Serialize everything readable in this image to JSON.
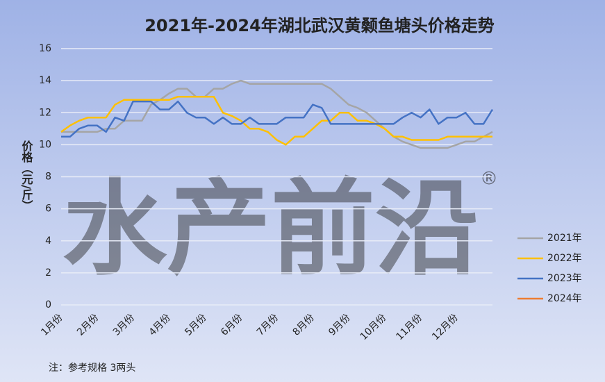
{
  "chart_data": {
    "type": "line",
    "title": "2021年-2024年湖北武汉黄颡鱼塘头价格走势",
    "y_label": "价格（元/斤）",
    "note": "注：参考规格  3两头",
    "watermark": "水产前沿",
    "watermark_mark": "®",
    "categories": [
      "1月份",
      null,
      null,
      null,
      "2月份",
      null,
      null,
      null,
      "3月份",
      null,
      null,
      null,
      "4月份",
      null,
      null,
      null,
      "5月份",
      null,
      null,
      null,
      "6月份",
      null,
      null,
      null,
      "7月份",
      null,
      null,
      null,
      "8月份",
      null,
      null,
      null,
      "9月份",
      null,
      null,
      null,
      "10月份",
      null,
      null,
      null,
      "11月份",
      null,
      null,
      null,
      "12月份",
      null,
      null,
      null,
      null
    ],
    "series": [
      {
        "name": "2021年",
        "color": "#a5a5a5",
        "values": [
          10.8,
          10.8,
          10.8,
          10.8,
          10.8,
          11,
          11,
          11.5,
          11.5,
          11.5,
          12.5,
          12.8,
          13.2,
          13.5,
          13.5,
          13,
          13,
          13.5,
          13.5,
          13.8,
          14,
          13.8,
          13.8,
          13.8,
          13.8,
          13.8,
          13.8,
          13.8,
          13.8,
          13.8,
          13.5,
          13,
          12.5,
          12.3,
          12,
          11.5,
          11,
          10.5,
          10.2,
          10,
          9.8,
          9.8,
          9.8,
          9.8,
          10,
          10.2,
          10.2,
          10.5,
          10.8
        ]
      },
      {
        "name": "2022年",
        "color": "#ffc000",
        "values": [
          10.8,
          11.2,
          11.5,
          11.7,
          11.7,
          11.7,
          12.5,
          12.8,
          12.8,
          12.8,
          12.8,
          12.8,
          12.8,
          13,
          13,
          13,
          13,
          13,
          12,
          11.8,
          11.5,
          11,
          11,
          10.8,
          10.3,
          10,
          10.5,
          10.5,
          11,
          11.5,
          11.5,
          12,
          12,
          11.5,
          11.5,
          11.3,
          11,
          10.5,
          10.5,
          10.3,
          10.3,
          10.3,
          10.3,
          10.5,
          10.5,
          10.5,
          10.5,
          10.5,
          10.5
        ]
      },
      {
        "name": "2023年",
        "color": "#4472c4",
        "values": [
          10.5,
          10.5,
          11,
          11.2,
          11.2,
          10.8,
          11.7,
          11.5,
          12.7,
          12.7,
          12.7,
          12.2,
          12.2,
          12.7,
          12,
          11.7,
          11.7,
          11.3,
          11.7,
          11.3,
          11.3,
          11.7,
          11.3,
          11.3,
          11.3,
          11.7,
          11.7,
          11.7,
          12.5,
          12.3,
          11.3,
          11.3,
          11.3,
          11.3,
          11.3,
          11.3,
          11.3,
          11.3,
          11.7,
          12,
          11.7,
          12.2,
          11.3,
          11.7,
          11.7,
          12,
          11.3,
          11.3,
          12.2
        ]
      },
      {
        "name": "2024年",
        "color": "#ed7d31",
        "values": [
          null,
          null,
          null,
          null,
          null,
          null,
          null,
          null,
          null,
          null,
          null,
          null,
          null,
          null,
          null,
          null,
          null,
          null,
          null,
          null,
          null,
          null,
          null,
          null,
          null,
          null,
          null,
          null,
          null,
          null,
          null,
          null,
          null,
          null,
          null,
          null,
          null,
          null,
          null,
          null,
          null,
          null,
          null,
          null,
          null,
          null,
          null,
          null,
          null
        ]
      }
    ],
    "ylim": [
      0,
      16
    ],
    "yticks": [
      0,
      2,
      4,
      6,
      8,
      10,
      12,
      14,
      16
    ],
    "grid": true,
    "legend": "right"
  }
}
